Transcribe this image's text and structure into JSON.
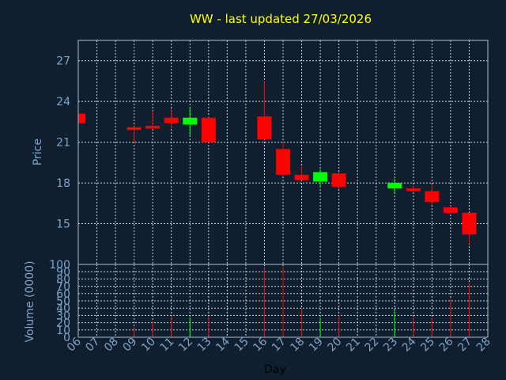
{
  "chart_data": {
    "type": "candlestick",
    "title": "WW - last updated 27/03/2026",
    "xlabel": "Day",
    "x_ticks": [
      "06",
      "07",
      "08",
      "09",
      "10",
      "11",
      "12",
      "13",
      "14",
      "15",
      "16",
      "17",
      "18",
      "19",
      "20",
      "21",
      "22",
      "23",
      "24",
      "25",
      "26",
      "27",
      "28"
    ],
    "price_panel": {
      "ylabel": "Price",
      "ylim": [
        12,
        28.5
      ],
      "y_ticks": [
        15,
        18,
        21,
        24,
        27
      ],
      "grid": true,
      "candles": [
        {
          "day": 6,
          "open": 23.1,
          "high": 23.1,
          "low": 22.4,
          "close": 22.4,
          "color": "red"
        },
        {
          "day": 9,
          "open": 22.1,
          "high": 22.3,
          "low": 21.0,
          "close": 21.9,
          "color": "red"
        },
        {
          "day": 10,
          "open": 22.2,
          "high": 23.3,
          "low": 22.0,
          "close": 22.0,
          "color": "red"
        },
        {
          "day": 11,
          "open": 22.8,
          "high": 23.5,
          "low": 22.0,
          "close": 22.4,
          "color": "red"
        },
        {
          "day": 12,
          "open": 22.3,
          "high": 23.6,
          "low": 21.5,
          "close": 22.8,
          "color": "green"
        },
        {
          "day": 13,
          "open": 22.8,
          "high": 22.9,
          "low": 21.0,
          "close": 21.0,
          "color": "red"
        },
        {
          "day": 16,
          "open": 22.9,
          "high": 25.5,
          "low": 21.1,
          "close": 21.2,
          "color": "red"
        },
        {
          "day": 17,
          "open": 20.5,
          "high": 21.0,
          "low": 18.5,
          "close": 18.6,
          "color": "red"
        },
        {
          "day": 18,
          "open": 18.6,
          "high": 19.2,
          "low": 18.2,
          "close": 18.2,
          "color": "red"
        },
        {
          "day": 19,
          "open": 18.1,
          "high": 19.0,
          "low": 17.7,
          "close": 18.8,
          "color": "green"
        },
        {
          "day": 20,
          "open": 18.7,
          "high": 18.8,
          "low": 17.6,
          "close": 17.7,
          "color": "red"
        },
        {
          "day": 23,
          "open": 17.6,
          "high": 18.3,
          "low": 17.2,
          "close": 18.0,
          "color": "green"
        },
        {
          "day": 24,
          "open": 17.6,
          "high": 17.8,
          "low": 17.3,
          "close": 17.4,
          "color": "red"
        },
        {
          "day": 25,
          "open": 17.4,
          "high": 17.9,
          "low": 16.4,
          "close": 16.6,
          "color": "red"
        },
        {
          "day": 26,
          "open": 16.2,
          "high": 16.3,
          "low": 15.8,
          "close": 15.8,
          "color": "red"
        },
        {
          "day": 27,
          "open": 15.8,
          "high": 15.8,
          "low": 13.5,
          "close": 14.2,
          "color": "red"
        }
      ]
    },
    "volume_panel": {
      "ylabel": "Volume (0000)",
      "ylim": [
        0,
        100
      ],
      "y_ticks": [
        0,
        10,
        20,
        30,
        40,
        50,
        60,
        70,
        80,
        90,
        100
      ],
      "grid": true,
      "bars": [
        {
          "day": 9,
          "value": 14,
          "color": "red"
        },
        {
          "day": 10,
          "value": 22,
          "color": "red"
        },
        {
          "day": 11,
          "value": 29,
          "color": "red"
        },
        {
          "day": 12,
          "value": 27,
          "color": "green"
        },
        {
          "day": 13,
          "value": 29,
          "color": "red"
        },
        {
          "day": 16,
          "value": 95,
          "color": "red"
        },
        {
          "day": 17,
          "value": 97,
          "color": "red"
        },
        {
          "day": 18,
          "value": 40,
          "color": "red"
        },
        {
          "day": 19,
          "value": 27,
          "color": "green"
        },
        {
          "day": 20,
          "value": 30,
          "color": "red"
        },
        {
          "day": 23,
          "value": 38,
          "color": "green"
        },
        {
          "day": 24,
          "value": 27,
          "color": "red"
        },
        {
          "day": 25,
          "value": 27,
          "color": "red"
        },
        {
          "day": 26,
          "value": 53,
          "color": "red"
        },
        {
          "day": 27,
          "value": 75,
          "color": "red"
        }
      ]
    },
    "colors": {
      "background": "#0f1f30",
      "frame": "#a8bcd0",
      "grid": "#c8d4e0",
      "up": "#00ff00",
      "down": "#ff0000",
      "text": "#7fa4c8",
      "title": "#ffff00"
    }
  }
}
